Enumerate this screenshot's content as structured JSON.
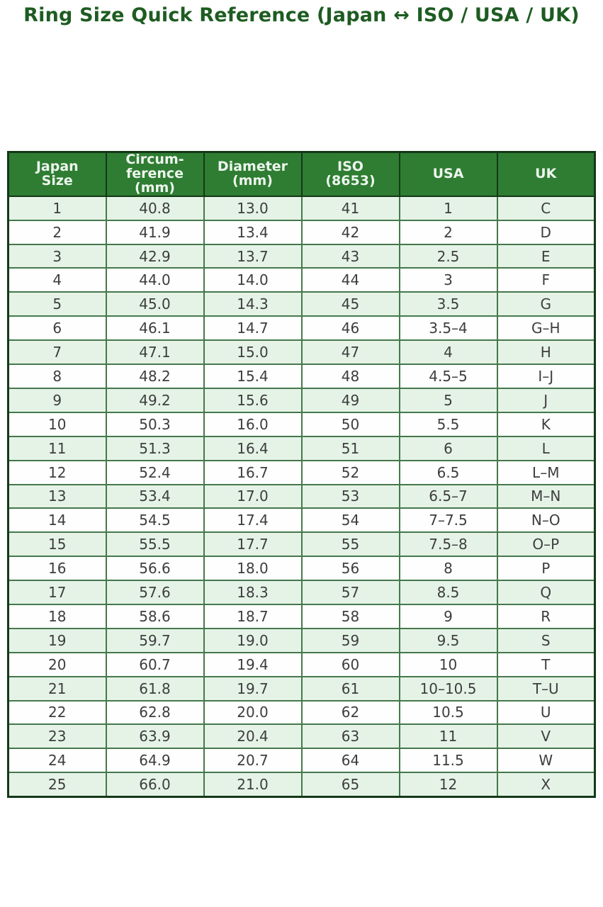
{
  "page": {
    "title": "Ring Size Quick Reference (Japan ↔ ISO / USA / UK)"
  },
  "colors": {
    "title_text": "#1e5c22",
    "header_bg": "#2e7d32",
    "header_text": "#eef5ee",
    "row_stripe_bg": "#e5f3e7",
    "row_plain_bg": "#fdfefd",
    "grid_line": "#45784b",
    "outer_border": "#143917",
    "body_text": "#3d3d3d"
  },
  "chart_data": {
    "type": "table",
    "title": "Ring Size Quick Reference (Japan ↔ ISO / USA / UK)",
    "columns": [
      "Japan Size",
      "Circumference (mm)",
      "Diameter (mm)",
      "ISO (8653)",
      "USA",
      "UK"
    ],
    "header_lines": {
      "japan": "Japan\nSize",
      "circumference": "Circum-\nference\n(mm)",
      "diameter": "Diameter\n(mm)",
      "iso": "ISO\n(8653)",
      "usa": "USA",
      "uk": "UK"
    },
    "rows": [
      [
        "1",
        "40.8",
        "13.0",
        "41",
        "1",
        "C"
      ],
      [
        "2",
        "41.9",
        "13.4",
        "42",
        "2",
        "D"
      ],
      [
        "3",
        "42.9",
        "13.7",
        "43",
        "2.5",
        "E"
      ],
      [
        "4",
        "44.0",
        "14.0",
        "44",
        "3",
        "F"
      ],
      [
        "5",
        "45.0",
        "14.3",
        "45",
        "3.5",
        "G"
      ],
      [
        "6",
        "46.1",
        "14.7",
        "46",
        "3.5–4",
        "G–H"
      ],
      [
        "7",
        "47.1",
        "15.0",
        "47",
        "4",
        "H"
      ],
      [
        "8",
        "48.2",
        "15.4",
        "48",
        "4.5–5",
        "I–J"
      ],
      [
        "9",
        "49.2",
        "15.6",
        "49",
        "5",
        "J"
      ],
      [
        "10",
        "50.3",
        "16.0",
        "50",
        "5.5",
        "K"
      ],
      [
        "11",
        "51.3",
        "16.4",
        "51",
        "6",
        "L"
      ],
      [
        "12",
        "52.4",
        "16.7",
        "52",
        "6.5",
        "L–M"
      ],
      [
        "13",
        "53.4",
        "17.0",
        "53",
        "6.5–7",
        "M–N"
      ],
      [
        "14",
        "54.5",
        "17.4",
        "54",
        "7–7.5",
        "N–O"
      ],
      [
        "15",
        "55.5",
        "17.7",
        "55",
        "7.5–8",
        "O–P"
      ],
      [
        "16",
        "56.6",
        "18.0",
        "56",
        "8",
        "P"
      ],
      [
        "17",
        "57.6",
        "18.3",
        "57",
        "8.5",
        "Q"
      ],
      [
        "18",
        "58.6",
        "18.7",
        "58",
        "9",
        "R"
      ],
      [
        "19",
        "59.7",
        "19.0",
        "59",
        "9.5",
        "S"
      ],
      [
        "20",
        "60.7",
        "19.4",
        "60",
        "10",
        "T"
      ],
      [
        "21",
        "61.8",
        "19.7",
        "61",
        "10–10.5",
        "T–U"
      ],
      [
        "22",
        "62.8",
        "20.0",
        "62",
        "10.5",
        "U"
      ],
      [
        "23",
        "63.9",
        "20.4",
        "63",
        "11",
        "V"
      ],
      [
        "24",
        "64.9",
        "20.7",
        "64",
        "11.5",
        "W"
      ],
      [
        "25",
        "66.0",
        "21.0",
        "65",
        "12",
        "X"
      ]
    ]
  }
}
